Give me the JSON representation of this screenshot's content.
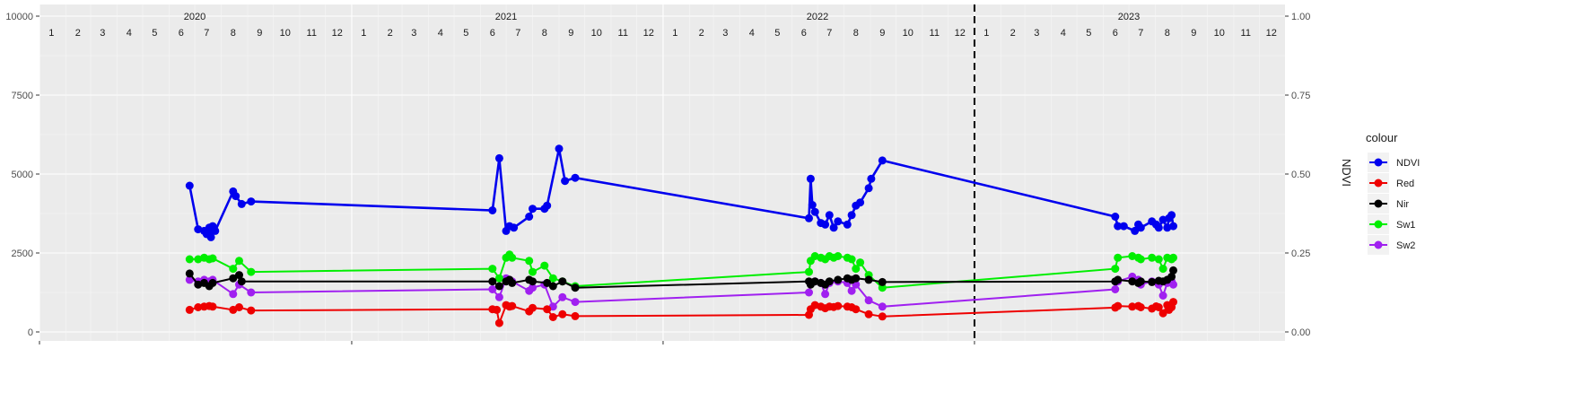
{
  "chart_data": {
    "type": "line",
    "title": "",
    "xlabel": "",
    "ylabel": "",
    "y2label": "NDVI",
    "ylim": [
      0,
      10000
    ],
    "y2lim": [
      0,
      1
    ],
    "yticks": [
      0,
      2500,
      5000,
      7500,
      10000
    ],
    "y2ticks": [
      "0.00",
      "0.25",
      "0.50",
      "0.75",
      "1.00"
    ],
    "xrange": [
      "2020-01-01",
      "2023-12-31"
    ],
    "years": [
      "2020",
      "2021",
      "2022",
      "2023"
    ],
    "months": [
      "1",
      "2",
      "3",
      "4",
      "5",
      "6",
      "7",
      "8",
      "9",
      "10",
      "11",
      "12"
    ],
    "vline": {
      "date": "2023-01-01",
      "style": "dashed"
    },
    "grid": true,
    "legend": {
      "title": "colour",
      "position": "right"
    },
    "series": [
      {
        "name": "NDVI",
        "color": "#0000EE",
        "axis": "secondary",
        "points": [
          [
            "2020-06-25",
            0.463
          ],
          [
            "2020-07-05",
            0.325
          ],
          [
            "2020-07-12",
            0.32
          ],
          [
            "2020-07-15",
            0.31
          ],
          [
            "2020-07-18",
            0.33
          ],
          [
            "2020-07-20",
            0.3
          ],
          [
            "2020-07-22",
            0.335
          ],
          [
            "2020-07-25",
            0.32
          ],
          [
            "2020-08-15",
            0.445
          ],
          [
            "2020-08-18",
            0.43
          ],
          [
            "2020-08-25",
            0.405
          ],
          [
            "2020-09-05",
            0.413
          ],
          [
            "2021-06-15",
            0.385
          ],
          [
            "2021-06-23",
            0.55
          ],
          [
            "2021-07-01",
            0.32
          ],
          [
            "2021-07-05",
            0.335
          ],
          [
            "2021-07-10",
            0.33
          ],
          [
            "2021-07-28",
            0.365
          ],
          [
            "2021-08-01",
            0.39
          ],
          [
            "2021-08-15",
            0.39
          ],
          [
            "2021-08-18",
            0.4
          ],
          [
            "2021-09-01",
            0.58
          ],
          [
            "2021-09-08",
            0.478
          ],
          [
            "2021-09-20",
            0.488
          ],
          [
            "2022-06-21",
            0.36
          ],
          [
            "2022-06-23",
            0.485
          ],
          [
            "2022-06-25",
            0.402
          ],
          [
            "2022-06-28",
            0.38
          ],
          [
            "2022-07-05",
            0.345
          ],
          [
            "2022-07-10",
            0.34
          ],
          [
            "2022-07-15",
            0.37
          ],
          [
            "2022-07-20",
            0.33
          ],
          [
            "2022-07-25",
            0.35
          ],
          [
            "2022-08-05",
            0.34
          ],
          [
            "2022-08-10",
            0.37
          ],
          [
            "2022-08-15",
            0.4
          ],
          [
            "2022-08-20",
            0.41
          ],
          [
            "2022-08-30",
            0.455
          ],
          [
            "2022-09-02",
            0.485
          ],
          [
            "2022-09-15",
            0.543
          ],
          [
            "2023-06-15",
            0.365
          ],
          [
            "2023-06-18",
            0.335
          ],
          [
            "2023-06-25",
            0.335
          ],
          [
            "2023-07-08",
            0.32
          ],
          [
            "2023-07-12",
            0.34
          ],
          [
            "2023-07-15",
            0.33
          ],
          [
            "2023-07-28",
            0.35
          ],
          [
            "2023-08-02",
            0.34
          ],
          [
            "2023-08-05",
            0.33
          ],
          [
            "2023-08-10",
            0.355
          ],
          [
            "2023-08-15",
            0.33
          ],
          [
            "2023-08-17",
            0.36
          ],
          [
            "2023-08-20",
            0.37
          ],
          [
            "2023-08-22",
            0.335
          ]
        ]
      },
      {
        "name": "Red",
        "color": "#EE0000",
        "axis": "primary",
        "points": [
          [
            "2020-06-25",
            700
          ],
          [
            "2020-07-05",
            780
          ],
          [
            "2020-07-12",
            800
          ],
          [
            "2020-07-18",
            820
          ],
          [
            "2020-07-22",
            800
          ],
          [
            "2020-08-15",
            700
          ],
          [
            "2020-08-22",
            780
          ],
          [
            "2020-09-05",
            680
          ],
          [
            "2021-06-15",
            720
          ],
          [
            "2021-06-20",
            700
          ],
          [
            "2021-06-23",
            280
          ],
          [
            "2021-07-01",
            850
          ],
          [
            "2021-07-05",
            800
          ],
          [
            "2021-07-08",
            820
          ],
          [
            "2021-07-28",
            650
          ],
          [
            "2021-08-01",
            760
          ],
          [
            "2021-08-18",
            720
          ],
          [
            "2021-08-25",
            470
          ],
          [
            "2021-09-05",
            560
          ],
          [
            "2021-09-20",
            500
          ],
          [
            "2022-06-21",
            540
          ],
          [
            "2022-06-23",
            720
          ],
          [
            "2022-06-28",
            850
          ],
          [
            "2022-07-05",
            800
          ],
          [
            "2022-07-10",
            750
          ],
          [
            "2022-07-15",
            800
          ],
          [
            "2022-07-20",
            790
          ],
          [
            "2022-07-25",
            820
          ],
          [
            "2022-08-05",
            800
          ],
          [
            "2022-08-10",
            780
          ],
          [
            "2022-08-15",
            720
          ],
          [
            "2022-08-30",
            560
          ],
          [
            "2022-09-15",
            490
          ],
          [
            "2023-06-15",
            770
          ],
          [
            "2023-06-18",
            820
          ],
          [
            "2023-07-05",
            800
          ],
          [
            "2023-07-12",
            820
          ],
          [
            "2023-07-15",
            780
          ],
          [
            "2023-07-28",
            740
          ],
          [
            "2023-08-02",
            810
          ],
          [
            "2023-08-05",
            780
          ],
          [
            "2023-08-10",
            590
          ],
          [
            "2023-08-15",
            850
          ],
          [
            "2023-08-17",
            700
          ],
          [
            "2023-08-20",
            780
          ],
          [
            "2023-08-22",
            950
          ]
        ]
      },
      {
        "name": "Nir",
        "color": "#000000",
        "axis": "primary",
        "points": [
          [
            "2020-06-25",
            1850
          ],
          [
            "2020-07-05",
            1500
          ],
          [
            "2020-07-12",
            1550
          ],
          [
            "2020-07-18",
            1450
          ],
          [
            "2020-07-22",
            1550
          ],
          [
            "2020-08-15",
            1700
          ],
          [
            "2020-08-22",
            1800
          ],
          [
            "2020-08-25",
            1600
          ],
          [
            "2021-06-15",
            1600
          ],
          [
            "2021-06-23",
            1450
          ],
          [
            "2021-07-01",
            1600
          ],
          [
            "2021-07-05",
            1650
          ],
          [
            "2021-07-08",
            1550
          ],
          [
            "2021-07-28",
            1650
          ],
          [
            "2021-08-01",
            1600
          ],
          [
            "2021-08-18",
            1550
          ],
          [
            "2021-08-25",
            1450
          ],
          [
            "2021-09-05",
            1600
          ],
          [
            "2021-09-20",
            1400
          ],
          [
            "2022-06-21",
            1600
          ],
          [
            "2022-06-23",
            1500
          ],
          [
            "2022-06-28",
            1600
          ],
          [
            "2022-07-05",
            1550
          ],
          [
            "2022-07-10",
            1500
          ],
          [
            "2022-07-15",
            1600
          ],
          [
            "2022-07-25",
            1650
          ],
          [
            "2022-08-05",
            1700
          ],
          [
            "2022-08-10",
            1650
          ],
          [
            "2022-08-15",
            1700
          ],
          [
            "2022-08-30",
            1650
          ],
          [
            "2022-09-15",
            1580
          ],
          [
            "2023-06-15",
            1600
          ],
          [
            "2023-06-18",
            1650
          ],
          [
            "2023-07-05",
            1600
          ],
          [
            "2023-07-12",
            1550
          ],
          [
            "2023-07-15",
            1600
          ],
          [
            "2023-07-28",
            1580
          ],
          [
            "2023-08-05",
            1620
          ],
          [
            "2023-08-10",
            1600
          ],
          [
            "2023-08-15",
            1650
          ],
          [
            "2023-08-20",
            1750
          ],
          [
            "2023-08-22",
            1950
          ]
        ]
      },
      {
        "name": "Sw1",
        "color": "#00EE00",
        "axis": "primary",
        "points": [
          [
            "2020-06-25",
            2300
          ],
          [
            "2020-07-05",
            2300
          ],
          [
            "2020-07-12",
            2350
          ],
          [
            "2020-07-18",
            2300
          ],
          [
            "2020-07-22",
            2330
          ],
          [
            "2020-08-15",
            2000
          ],
          [
            "2020-08-22",
            2250
          ],
          [
            "2020-09-05",
            1900
          ],
          [
            "2021-06-15",
            2000
          ],
          [
            "2021-06-23",
            1700
          ],
          [
            "2021-07-01",
            2350
          ],
          [
            "2021-07-05",
            2450
          ],
          [
            "2021-07-08",
            2350
          ],
          [
            "2021-07-28",
            2250
          ],
          [
            "2021-08-01",
            1900
          ],
          [
            "2021-08-15",
            2100
          ],
          [
            "2021-08-25",
            1700
          ],
          [
            "2021-09-05",
            1600
          ],
          [
            "2021-09-20",
            1450
          ],
          [
            "2022-06-21",
            1900
          ],
          [
            "2022-06-23",
            2250
          ],
          [
            "2022-06-28",
            2400
          ],
          [
            "2022-07-05",
            2350
          ],
          [
            "2022-07-10",
            2300
          ],
          [
            "2022-07-15",
            2400
          ],
          [
            "2022-07-20",
            2350
          ],
          [
            "2022-07-25",
            2400
          ],
          [
            "2022-08-05",
            2350
          ],
          [
            "2022-08-10",
            2300
          ],
          [
            "2022-08-15",
            2000
          ],
          [
            "2022-08-20",
            2200
          ],
          [
            "2022-08-30",
            1800
          ],
          [
            "2022-09-15",
            1400
          ],
          [
            "2023-06-15",
            2000
          ],
          [
            "2023-06-18",
            2350
          ],
          [
            "2023-07-05",
            2400
          ],
          [
            "2023-07-12",
            2350
          ],
          [
            "2023-07-15",
            2300
          ],
          [
            "2023-07-28",
            2350
          ],
          [
            "2023-08-05",
            2300
          ],
          [
            "2023-08-10",
            2000
          ],
          [
            "2023-08-15",
            2350
          ],
          [
            "2023-08-20",
            2300
          ],
          [
            "2023-08-22",
            2350
          ]
        ]
      },
      {
        "name": "Sw2",
        "color": "#A020F0",
        "axis": "primary",
        "points": [
          [
            "2020-06-25",
            1650
          ],
          [
            "2020-07-05",
            1600
          ],
          [
            "2020-07-12",
            1650
          ],
          [
            "2020-07-18",
            1600
          ],
          [
            "2020-07-22",
            1650
          ],
          [
            "2020-08-15",
            1200
          ],
          [
            "2020-08-22",
            1500
          ],
          [
            "2020-09-05",
            1250
          ],
          [
            "2021-06-15",
            1350
          ],
          [
            "2021-06-23",
            1100
          ],
          [
            "2021-07-01",
            1700
          ],
          [
            "2021-07-05",
            1650
          ],
          [
            "2021-07-08",
            1600
          ],
          [
            "2021-07-28",
            1300
          ],
          [
            "2021-08-01",
            1400
          ],
          [
            "2021-08-15",
            1500
          ],
          [
            "2021-08-25",
            800
          ],
          [
            "2021-09-05",
            1100
          ],
          [
            "2021-09-20",
            950
          ],
          [
            "2022-06-21",
            1250
          ],
          [
            "2022-06-23",
            1550
          ],
          [
            "2022-06-28",
            1600
          ],
          [
            "2022-07-05",
            1550
          ],
          [
            "2022-07-10",
            1200
          ],
          [
            "2022-07-15",
            1550
          ],
          [
            "2022-07-25",
            1600
          ],
          [
            "2022-08-05",
            1550
          ],
          [
            "2022-08-10",
            1300
          ],
          [
            "2022-08-15",
            1500
          ],
          [
            "2022-08-30",
            1000
          ],
          [
            "2022-09-15",
            800
          ],
          [
            "2023-06-15",
            1350
          ],
          [
            "2023-06-18",
            1600
          ],
          [
            "2023-07-05",
            1750
          ],
          [
            "2023-07-12",
            1650
          ],
          [
            "2023-07-15",
            1500
          ],
          [
            "2023-07-28",
            1600
          ],
          [
            "2023-08-05",
            1500
          ],
          [
            "2023-08-10",
            1150
          ],
          [
            "2023-08-15",
            1550
          ],
          [
            "2023-08-20",
            1600
          ],
          [
            "2023-08-22",
            1500
          ]
        ]
      }
    ]
  }
}
